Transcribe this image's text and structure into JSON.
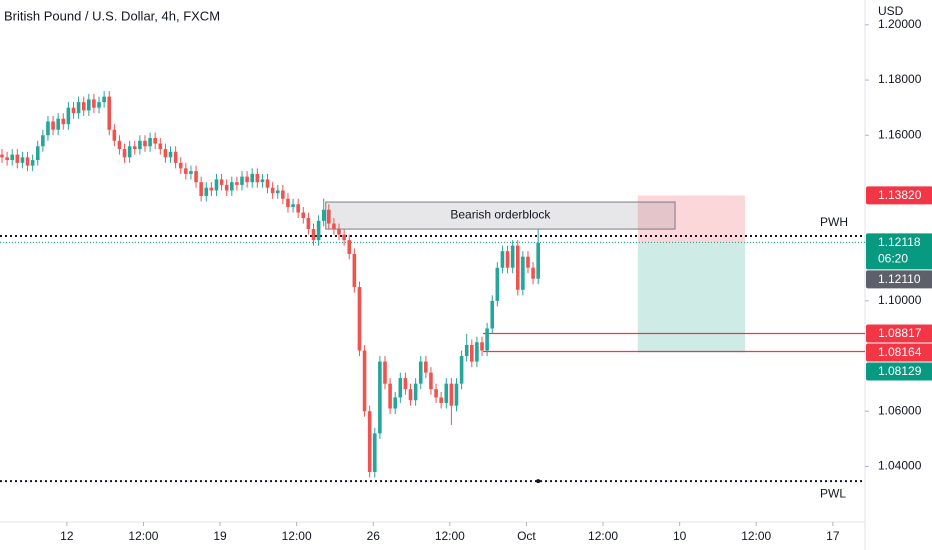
{
  "chart_data": {
    "type": "candlestick",
    "title": "British Pound / U.S. Dollar, 4h, FXCM",
    "y_axis_label": "USD",
    "up_color": "#26a69a",
    "down_color": "#ef5350",
    "xlim": [
      0,
      169
    ],
    "xticks": [
      {
        "value": 12.7,
        "label": "12"
      },
      {
        "value": 27.7,
        "label": "12:00"
      },
      {
        "value": 42.7,
        "label": "19"
      },
      {
        "value": 57.7,
        "label": "12:00"
      },
      {
        "value": 72.7,
        "label": "26"
      },
      {
        "value": 87.7,
        "label": "12:00"
      },
      {
        "value": 102.7,
        "label": "Oct"
      },
      {
        "value": 117.7,
        "label": "12:00"
      },
      {
        "value": 132.7,
        "label": "10"
      },
      {
        "value": 147.7,
        "label": "12:00"
      },
      {
        "value": 162.7,
        "label": "17"
      }
    ],
    "ylim": [
      1.0206,
      1.209
    ],
    "yticks": [
      {
        "value": 1.2,
        "label": "1.20000"
      },
      {
        "value": 1.18,
        "label": "1.18000"
      },
      {
        "value": 1.16,
        "label": "1.16000"
      },
      {
        "value": 1.1,
        "label": "1.10000"
      },
      {
        "value": 1.06,
        "label": "1.06000"
      },
      {
        "value": 1.04,
        "label": "1.04000"
      }
    ],
    "open": [
      1.153,
      1.152,
      1.151,
      1.153,
      1.15,
      1.152,
      1.149,
      1.151,
      1.156,
      1.16,
      1.165,
      1.162,
      1.166,
      1.164,
      1.17,
      1.168,
      1.172,
      1.169,
      1.173,
      1.17,
      1.172,
      1.174,
      1.162,
      1.158,
      1.155,
      1.152,
      1.156,
      1.155,
      1.158,
      1.156,
      1.159,
      1.157,
      1.155,
      1.152,
      1.154,
      1.15,
      1.148,
      1.146,
      1.147,
      1.143,
      1.138,
      1.141,
      1.14,
      1.144,
      1.142,
      1.14,
      1.143,
      1.142,
      1.145,
      1.143,
      1.146,
      1.143,
      1.144,
      1.141,
      1.139,
      1.14,
      1.137,
      1.134,
      1.135,
      1.132,
      1.13,
      1.126,
      1.122,
      1.129,
      1.133,
      1.128,
      1.126,
      1.124,
      1.122,
      1.117,
      1.105,
      1.082,
      1.06,
      1.038,
      1.052,
      1.078,
      1.07,
      1.061,
      1.065,
      1.072,
      1.068,
      1.064,
      1.07,
      1.078,
      1.074,
      1.068,
      1.065,
      1.063,
      1.07,
      1.062,
      1.07,
      1.08,
      1.084,
      1.078,
      1.085,
      1.082,
      1.09,
      1.1,
      1.112,
      1.118,
      1.112,
      1.12,
      1.104,
      1.116,
      1.112,
      1.108
    ],
    "high": [
      1.155,
      1.154,
      1.155,
      1.155,
      1.154,
      1.154,
      1.153,
      1.158,
      1.162,
      1.167,
      1.167,
      1.168,
      1.168,
      1.172,
      1.172,
      1.174,
      1.174,
      1.175,
      1.175,
      1.174,
      1.176,
      1.176,
      1.164,
      1.16,
      1.157,
      1.158,
      1.158,
      1.16,
      1.16,
      1.161,
      1.161,
      1.159,
      1.157,
      1.156,
      1.156,
      1.152,
      1.15,
      1.149,
      1.149,
      1.145,
      1.143,
      1.143,
      1.146,
      1.146,
      1.144,
      1.145,
      1.145,
      1.147,
      1.147,
      1.148,
      1.148,
      1.146,
      1.146,
      1.143,
      1.142,
      1.142,
      1.139,
      1.137,
      1.137,
      1.134,
      1.132,
      1.128,
      1.131,
      1.137,
      1.135,
      1.13,
      1.128,
      1.126,
      1.124,
      1.119,
      1.107,
      1.084,
      1.062,
      1.054,
      1.08,
      1.08,
      1.072,
      1.067,
      1.074,
      1.074,
      1.07,
      1.072,
      1.08,
      1.08,
      1.076,
      1.07,
      1.067,
      1.072,
      1.072,
      1.072,
      1.082,
      1.088,
      1.086,
      1.087,
      1.087,
      1.092,
      1.102,
      1.114,
      1.12,
      1.12,
      1.122,
      1.122,
      1.118,
      1.118,
      1.114,
      1.126
    ],
    "low": [
      1.15,
      1.149,
      1.149,
      1.148,
      1.148,
      1.147,
      1.147,
      1.149,
      1.154,
      1.158,
      1.16,
      1.16,
      1.162,
      1.162,
      1.166,
      1.166,
      1.167,
      1.167,
      1.168,
      1.168,
      1.17,
      1.16,
      1.156,
      1.153,
      1.15,
      1.15,
      1.153,
      1.153,
      1.154,
      1.154,
      1.155,
      1.153,
      1.15,
      1.15,
      1.148,
      1.146,
      1.144,
      1.144,
      1.141,
      1.136,
      1.136,
      1.138,
      1.138,
      1.14,
      1.138,
      1.138,
      1.14,
      1.14,
      1.141,
      1.141,
      1.141,
      1.141,
      1.139,
      1.137,
      1.137,
      1.135,
      1.132,
      1.132,
      1.13,
      1.128,
      1.124,
      1.12,
      1.12,
      1.127,
      1.126,
      1.124,
      1.122,
      1.12,
      1.115,
      1.103,
      1.08,
      1.058,
      1.036,
      1.036,
      1.05,
      1.068,
      1.059,
      1.059,
      1.063,
      1.066,
      1.062,
      1.062,
      1.068,
      1.072,
      1.066,
      1.063,
      1.061,
      1.061,
      1.055,
      1.06,
      1.068,
      1.078,
      1.076,
      1.076,
      1.08,
      1.08,
      1.088,
      1.098,
      1.11,
      1.11,
      1.11,
      1.102,
      1.102,
      1.11,
      1.106,
      1.106
    ],
    "close": [
      1.152,
      1.151,
      1.153,
      1.15,
      1.152,
      1.149,
      1.151,
      1.156,
      1.16,
      1.165,
      1.162,
      1.166,
      1.164,
      1.17,
      1.168,
      1.172,
      1.169,
      1.173,
      1.17,
      1.172,
      1.174,
      1.162,
      1.158,
      1.155,
      1.152,
      1.156,
      1.155,
      1.158,
      1.156,
      1.159,
      1.157,
      1.155,
      1.152,
      1.154,
      1.15,
      1.148,
      1.146,
      1.147,
      1.143,
      1.138,
      1.141,
      1.14,
      1.144,
      1.142,
      1.14,
      1.143,
      1.142,
      1.145,
      1.143,
      1.146,
      1.143,
      1.144,
      1.141,
      1.139,
      1.14,
      1.137,
      1.134,
      1.135,
      1.132,
      1.13,
      1.126,
      1.122,
      1.129,
      1.133,
      1.128,
      1.126,
      1.124,
      1.122,
      1.117,
      1.105,
      1.082,
      1.06,
      1.038,
      1.052,
      1.078,
      1.07,
      1.061,
      1.065,
      1.072,
      1.068,
      1.064,
      1.07,
      1.078,
      1.074,
      1.068,
      1.065,
      1.063,
      1.07,
      1.062,
      1.07,
      1.08,
      1.084,
      1.078,
      1.085,
      1.082,
      1.09,
      1.1,
      1.112,
      1.118,
      1.112,
      1.12,
      1.104,
      1.116,
      1.112,
      1.108,
      1.121
    ],
    "orderblock": {
      "label": "Bearish orderblock",
      "top": 1.1358,
      "bottom": 1.126,
      "x_start": 63.4,
      "x_end": 131.8
    },
    "levels": [
      {
        "label": "PWH",
        "value": 1.1235,
        "style": "dotted"
      },
      {
        "label": "PWL",
        "value": 1.0347,
        "style": "dotted"
      }
    ],
    "price_labels": [
      {
        "value": 1.1382,
        "label": "1.13820",
        "color": "#f23645"
      },
      {
        "value": 1.12118,
        "label": "1.12118",
        "countdown": "06:20",
        "color": "#089981"
      },
      {
        "value": 1.1211,
        "label": "1.12110",
        "color": "#5d606b"
      },
      {
        "value": 1.08817,
        "label": "1.08817",
        "color": "#f23645"
      },
      {
        "value": 1.08164,
        "label": "1.08164",
        "color": "#f23645"
      },
      {
        "value": 1.08129,
        "label": "1.08129",
        "color": "#089981"
      }
    ],
    "level_lines": {
      "x_start": 94.2,
      "labels": [
        3,
        4
      ],
      "color": "#f23645"
    },
    "position": {
      "stop": 0,
      "entry": 2,
      "target": 5,
      "x_start": 124.5,
      "x_end": 145.5
    },
    "current_price": 1
  }
}
